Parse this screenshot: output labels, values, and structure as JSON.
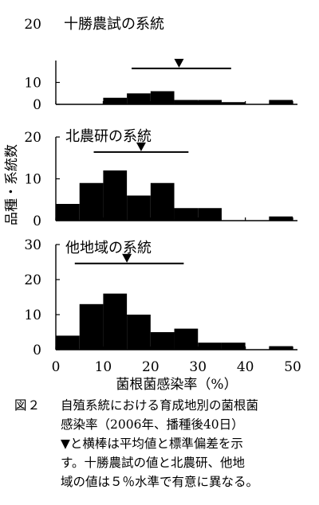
{
  "chart_data": [
    {
      "type": "bar",
      "title": "十勝農試の系統",
      "axis_top_label": "20",
      "yticks": [
        0,
        10
      ],
      "ylim": [
        0,
        20
      ],
      "bin_width": 5,
      "bins": [
        [
          10,
          3
        ],
        [
          15,
          5
        ],
        [
          20,
          6
        ],
        [
          25,
          2
        ],
        [
          30,
          2
        ],
        [
          35,
          1
        ],
        [
          45,
          2
        ]
      ],
      "mean": 26,
      "sd_range": [
        16,
        37
      ]
    },
    {
      "type": "bar",
      "title": "北農研の系統",
      "yticks": [
        0,
        10,
        20
      ],
      "ylim": [
        0,
        20
      ],
      "bin_width": 5,
      "bins": [
        [
          0,
          4
        ],
        [
          5,
          9
        ],
        [
          10,
          12
        ],
        [
          15,
          6
        ],
        [
          20,
          9
        ],
        [
          25,
          3
        ],
        [
          30,
          3
        ],
        [
          45,
          1
        ]
      ],
      "mean": 18,
      "sd_range": [
        8,
        28
      ]
    },
    {
      "type": "bar",
      "title": "他地域の系統",
      "yticks": [
        0,
        10,
        20,
        30
      ],
      "ylim": [
        0,
        30
      ],
      "bin_width": 5,
      "bins": [
        [
          0,
          4
        ],
        [
          5,
          13
        ],
        [
          10,
          16
        ],
        [
          15,
          10
        ],
        [
          20,
          5
        ],
        [
          25,
          6
        ],
        [
          30,
          2
        ],
        [
          35,
          2
        ],
        [
          45,
          1
        ]
      ],
      "mean": 15,
      "sd_range": [
        4,
        27
      ]
    }
  ],
  "axes": {
    "xticks": [
      0,
      10,
      20,
      30,
      40,
      50
    ],
    "xlabel": "菌根菌感染率（%）",
    "ylabel": "品種・系統数",
    "xlim": [
      0,
      51
    ]
  },
  "caption": {
    "label": "図２",
    "lines": [
      "自殖系統における育成地別の菌根菌",
      "感染率（2006年、播種後40日）"
    ],
    "note_lines": [
      "▼と横棒は平均値と標準偏差を示",
      "す。十勝農試の値と北農研、他地",
      "域の値は５％水準で有意に異なる。"
    ]
  },
  "colors": {
    "bar": "#000000",
    "background": "#ffffff"
  }
}
